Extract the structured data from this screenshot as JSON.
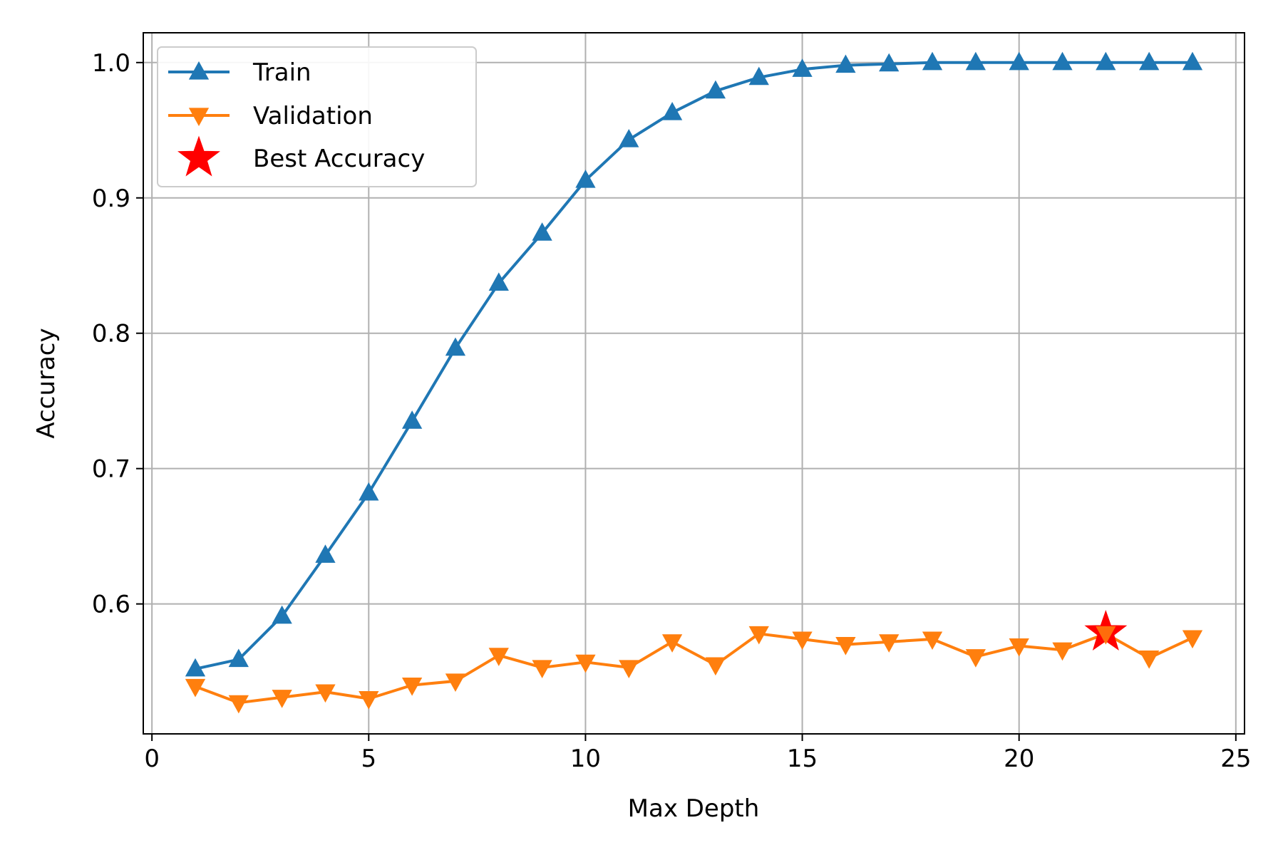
{
  "chart_data": {
    "type": "line",
    "xlabel": "Max Depth",
    "ylabel": "Accuracy",
    "xlim": [
      -0.2,
      25.2
    ],
    "ylim": [
      0.504,
      1.022
    ],
    "xticks": [
      0,
      5,
      10,
      15,
      20,
      25
    ],
    "yticks": [
      0.6,
      0.7,
      0.8,
      0.9,
      1.0
    ],
    "xtick_labels": [
      "0",
      "5",
      "10",
      "15",
      "20",
      "25"
    ],
    "ytick_labels": [
      "0.6",
      "0.7",
      "0.8",
      "0.9",
      "1.0"
    ],
    "grid": true,
    "legend_position": "top-left",
    "x": [
      1,
      2,
      3,
      4,
      5,
      6,
      7,
      8,
      9,
      10,
      11,
      12,
      13,
      14,
      15,
      16,
      17,
      18,
      19,
      20,
      21,
      22,
      23,
      24
    ],
    "series": [
      {
        "name": "Train",
        "marker": "triangle-up",
        "color": "#1f77b4",
        "values": [
          0.552,
          0.559,
          0.591,
          0.636,
          0.682,
          0.735,
          0.789,
          0.837,
          0.874,
          0.913,
          0.943,
          0.963,
          0.979,
          0.989,
          0.995,
          0.998,
          0.999,
          1.0,
          1.0,
          1.0,
          1.0,
          1.0,
          1.0,
          1.0
        ]
      },
      {
        "name": "Validation",
        "marker": "triangle-down",
        "color": "#ff7f0e",
        "values": [
          0.539,
          0.527,
          0.531,
          0.535,
          0.53,
          0.54,
          0.543,
          0.562,
          0.553,
          0.557,
          0.553,
          0.572,
          0.555,
          0.578,
          0.574,
          0.57,
          0.572,
          0.574,
          0.561,
          0.569,
          0.566,
          0.578,
          0.56,
          0.575
        ]
      }
    ],
    "highlight": {
      "name": "Best Accuracy",
      "marker": "star",
      "color": "#ff0000",
      "x": 22,
      "y": 0.579
    }
  }
}
